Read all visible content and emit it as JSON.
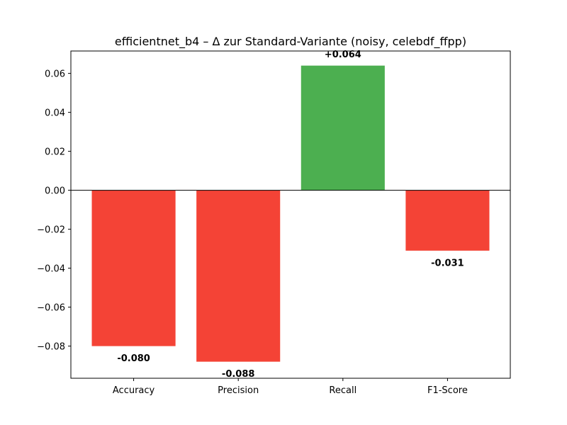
{
  "chart_data": {
    "type": "bar",
    "title": "efficientnet_b4 – Δ zur Standard-Variante (noisy, celebdf_ffpp)",
    "xlabel": "",
    "ylabel": "",
    "categories": [
      "Accuracy",
      "Precision",
      "Recall",
      "F1-Score"
    ],
    "values": [
      -0.08,
      -0.088,
      0.064,
      -0.031
    ],
    "data_labels": [
      "-0.080",
      "-0.088",
      "+0.064",
      "-0.031"
    ],
    "ylim": [
      -0.0965,
      0.0715
    ],
    "yticks": [
      -0.08,
      -0.06,
      -0.04,
      -0.02,
      0.0,
      0.02,
      0.04,
      0.06
    ],
    "ytick_labels": [
      "−0.08",
      "−0.06",
      "−0.04",
      "−0.02",
      "0.00",
      "0.02",
      "0.04",
      "0.06"
    ],
    "zero_line": true,
    "grid": false,
    "legend": "none",
    "colors": {
      "positive": "#4caf50",
      "negative": "#f44336",
      "axis": "#000000"
    }
  }
}
